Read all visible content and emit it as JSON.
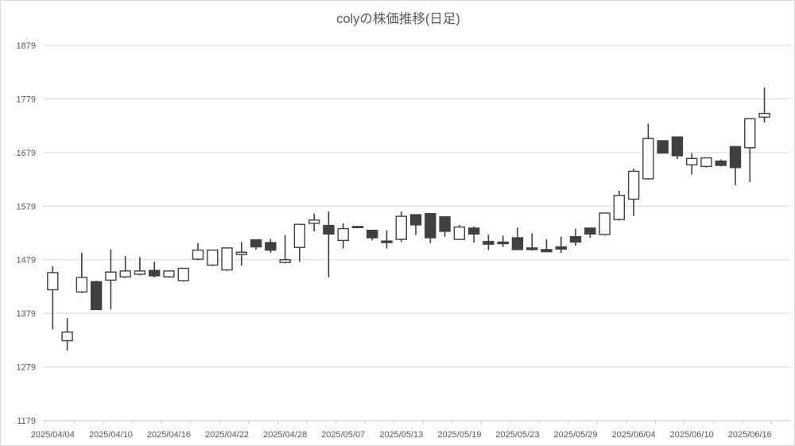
{
  "title": "colyの株価推移(日足)",
  "chart_data": {
    "type": "candlestick",
    "title": "colyの株価推移(日足)",
    "grid": "horizontal",
    "legend": "none",
    "y_axis": {
      "min": 1179,
      "max": 1879,
      "tick_interval": 100,
      "ticks": [
        1879,
        1779,
        1679,
        1579,
        1479,
        1379,
        1279,
        1179
      ]
    },
    "x_tick_labels": [
      "2025/04/04",
      "2025/04/10",
      "2025/04/16",
      "2025/04/22",
      "2025/04/28",
      "2025/05/07",
      "2025/05/13",
      "2025/05/19",
      "2025/05/23",
      "2025/05/29",
      "2025/06/04",
      "2025/06/10",
      "2025/06/16"
    ],
    "label_every": 4,
    "colors": {
      "up_fill": "#ffffff",
      "down_fill": "#404040",
      "outline": "#404040",
      "wick": "#404040",
      "grid": "#d9d9d9",
      "axis": "#c9c9c9",
      "text": "#595959"
    },
    "series": [
      {
        "date": "2025/04/04",
        "open": 1423,
        "high": 1467,
        "low": 1349,
        "close": 1455
      },
      {
        "date": "2025/04/07",
        "open": 1328,
        "high": 1370,
        "low": 1310,
        "close": 1344
      },
      {
        "date": "2025/04/08",
        "open": 1419,
        "high": 1492,
        "low": 1417,
        "close": 1446
      },
      {
        "date": "2025/04/09",
        "open": 1438,
        "high": 1440,
        "low": 1385,
        "close": 1386
      },
      {
        "date": "2025/04/10",
        "open": 1441,
        "high": 1498,
        "low": 1386,
        "close": 1456
      },
      {
        "date": "2025/04/11",
        "open": 1447,
        "high": 1486,
        "low": 1445,
        "close": 1458
      },
      {
        "date": "2025/04/14",
        "open": 1452,
        "high": 1484,
        "low": 1450,
        "close": 1458
      },
      {
        "date": "2025/04/15",
        "open": 1459,
        "high": 1475,
        "low": 1446,
        "close": 1449
      },
      {
        "date": "2025/04/16",
        "open": 1447,
        "high": 1459,
        "low": 1445,
        "close": 1458
      },
      {
        "date": "2025/04/17",
        "open": 1440,
        "high": 1464,
        "low": 1438,
        "close": 1463
      },
      {
        "date": "2025/04/18",
        "open": 1480,
        "high": 1510,
        "low": 1478,
        "close": 1497
      },
      {
        "date": "2025/04/21",
        "open": 1469,
        "high": 1498,
        "low": 1467,
        "close": 1497
      },
      {
        "date": "2025/04/22",
        "open": 1460,
        "high": 1502,
        "low": 1458,
        "close": 1501
      },
      {
        "date": "2025/04/23",
        "open": 1489,
        "high": 1512,
        "low": 1468,
        "close": 1493
      },
      {
        "date": "2025/04/24",
        "open": 1516,
        "high": 1517,
        "low": 1498,
        "close": 1503
      },
      {
        "date": "2025/04/25",
        "open": 1511,
        "high": 1518,
        "low": 1492,
        "close": 1497
      },
      {
        "date": "2025/04/28",
        "open": 1474,
        "high": 1525,
        "low": 1472,
        "close": 1479
      },
      {
        "date": "2025/04/30",
        "open": 1502,
        "high": 1546,
        "low": 1475,
        "close": 1545
      },
      {
        "date": "2025/05/01",
        "open": 1547,
        "high": 1565,
        "low": 1532,
        "close": 1553
      },
      {
        "date": "2025/05/02",
        "open": 1543,
        "high": 1569,
        "low": 1446,
        "close": 1527
      },
      {
        "date": "2025/05/07",
        "open": 1515,
        "high": 1547,
        "low": 1500,
        "close": 1537
      },
      {
        "date": "2025/05/08",
        "open": 1541,
        "high": 1542,
        "low": 1538,
        "close": 1539
      },
      {
        "date": "2025/05/09",
        "open": 1534,
        "high": 1535,
        "low": 1515,
        "close": 1520
      },
      {
        "date": "2025/05/12",
        "open": 1514,
        "high": 1534,
        "low": 1500,
        "close": 1511
      },
      {
        "date": "2025/05/13",
        "open": 1517,
        "high": 1569,
        "low": 1512,
        "close": 1560
      },
      {
        "date": "2025/05/14",
        "open": 1563,
        "high": 1564,
        "low": 1525,
        "close": 1544
      },
      {
        "date": "2025/05/15",
        "open": 1565,
        "high": 1566,
        "low": 1510,
        "close": 1520
      },
      {
        "date": "2025/05/16",
        "open": 1559,
        "high": 1560,
        "low": 1522,
        "close": 1532
      },
      {
        "date": "2025/05/19",
        "open": 1517,
        "high": 1544,
        "low": 1516,
        "close": 1540
      },
      {
        "date": "2025/05/20",
        "open": 1538,
        "high": 1541,
        "low": 1511,
        "close": 1527
      },
      {
        "date": "2025/05/21",
        "open": 1513,
        "high": 1526,
        "low": 1497,
        "close": 1508
      },
      {
        "date": "2025/05/22",
        "open": 1512,
        "high": 1524,
        "low": 1503,
        "close": 1509
      },
      {
        "date": "2025/05/23",
        "open": 1520,
        "high": 1539,
        "low": 1497,
        "close": 1498
      },
      {
        "date": "2025/05/26",
        "open": 1501,
        "high": 1528,
        "low": 1496,
        "close": 1498
      },
      {
        "date": "2025/05/27",
        "open": 1498,
        "high": 1517,
        "low": 1493,
        "close": 1494
      },
      {
        "date": "2025/05/28",
        "open": 1503,
        "high": 1522,
        "low": 1492,
        "close": 1499
      },
      {
        "date": "2025/05/29",
        "open": 1522,
        "high": 1537,
        "low": 1505,
        "close": 1512
      },
      {
        "date": "2025/05/30",
        "open": 1538,
        "high": 1539,
        "low": 1520,
        "close": 1527
      },
      {
        "date": "2025/06/02",
        "open": 1526,
        "high": 1567,
        "low": 1524,
        "close": 1566
      },
      {
        "date": "2025/06/03",
        "open": 1554,
        "high": 1608,
        "low": 1552,
        "close": 1599
      },
      {
        "date": "2025/06/04",
        "open": 1592,
        "high": 1649,
        "low": 1560,
        "close": 1644
      },
      {
        "date": "2025/06/05",
        "open": 1630,
        "high": 1733,
        "low": 1628,
        "close": 1705
      },
      {
        "date": "2025/06/06",
        "open": 1701,
        "high": 1702,
        "low": 1677,
        "close": 1678
      },
      {
        "date": "2025/06/09",
        "open": 1708,
        "high": 1709,
        "low": 1667,
        "close": 1673
      },
      {
        "date": "2025/06/10",
        "open": 1656,
        "high": 1678,
        "low": 1638,
        "close": 1668
      },
      {
        "date": "2025/06/11",
        "open": 1653,
        "high": 1669,
        "low": 1651,
        "close": 1669
      },
      {
        "date": "2025/06/12",
        "open": 1663,
        "high": 1666,
        "low": 1653,
        "close": 1655
      },
      {
        "date": "2025/06/13",
        "open": 1690,
        "high": 1691,
        "low": 1618,
        "close": 1651
      },
      {
        "date": "2025/06/16",
        "open": 1688,
        "high": 1742,
        "low": 1624,
        "close": 1742
      },
      {
        "date": "2025/06/17",
        "open": 1745,
        "high": 1800,
        "low": 1735,
        "close": 1752
      }
    ]
  }
}
